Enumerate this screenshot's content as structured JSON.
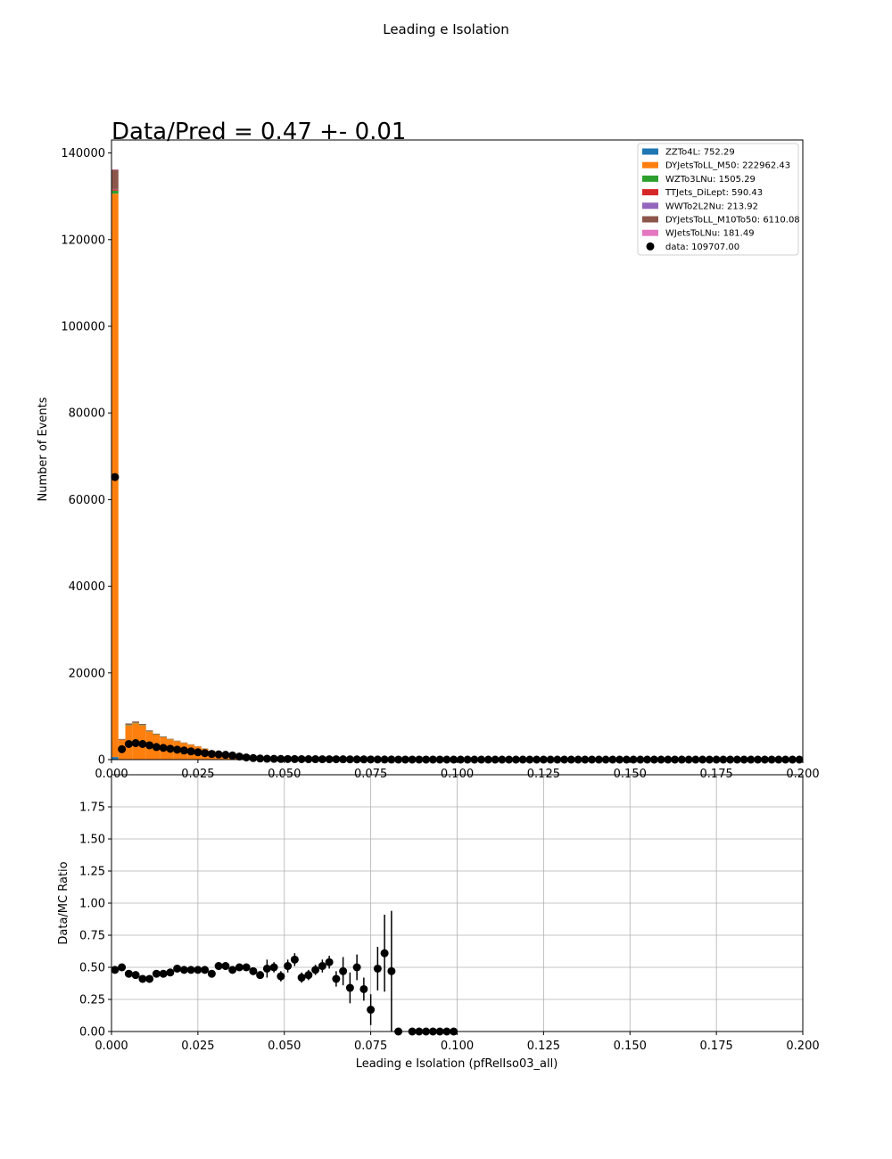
{
  "figure_title": "Leading e Isolation",
  "colors": {
    "ZZTo4L": "#1f77b4",
    "DYJetsToLL_M50": "#ff7f0e",
    "WZTo3LNu": "#2ca02c",
    "TTJets_DiLept": "#d62728",
    "WWTo2L2Nu": "#9467bd",
    "DYJetsToLL_M10To50": "#8c564b",
    "WJetsToLNu": "#e377c2",
    "data": "#000000",
    "grid": "#b0b0b0"
  },
  "chart_data": [
    {
      "type": "bar",
      "subtype": "stacked-histogram",
      "annotation": "Data/Pred = 0.47 +- 0.01",
      "ylabel": "Number of Events",
      "xlim": [
        0,
        0.2
      ],
      "ylim": [
        0,
        143000
      ],
      "xticks": [
        "0.000",
        "0.025",
        "0.050",
        "0.075",
        "0.100",
        "0.125",
        "0.150",
        "0.175",
        "0.200"
      ],
      "yticks": [
        "0",
        "20000",
        "40000",
        "60000",
        "80000",
        "100000",
        "120000",
        "140000"
      ],
      "ytick_values": [
        0,
        20000,
        40000,
        60000,
        80000,
        100000,
        120000,
        140000
      ],
      "bin_width": 0.002,
      "legend_position": "top-right",
      "legend": [
        {
          "key": "ZZTo4L",
          "label": "ZZTo4L: 752.29",
          "marker": "square"
        },
        {
          "key": "DYJetsToLL_M50",
          "label": "DYJetsToLL_M50: 222962.43",
          "marker": "square"
        },
        {
          "key": "WZTo3LNu",
          "label": "WZTo3LNu: 1505.29",
          "marker": "square"
        },
        {
          "key": "TTJets_DiLept",
          "label": "TTJets_DiLept: 590.43",
          "marker": "square"
        },
        {
          "key": "WWTo2L2Nu",
          "label": "WWTo2L2Nu: 213.92",
          "marker": "square"
        },
        {
          "key": "DYJetsToLL_M10To50",
          "label": "DYJetsToLL_M10To50: 6110.08",
          "marker": "square"
        },
        {
          "key": "WJetsToLNu",
          "label": "WJetsToLNu: 181.49",
          "marker": "square"
        },
        {
          "key": "data",
          "label": "data: 109707.00",
          "marker": "circle"
        }
      ],
      "series": [
        {
          "key": "ZZTo4L",
          "values": [
            600,
            40,
            80,
            80,
            80,
            70,
            60,
            50,
            40,
            30,
            30,
            25,
            20,
            20,
            15,
            10,
            10,
            8,
            6,
            5
          ]
        },
        {
          "key": "DYJetsToLL_M50",
          "values": [
            130000,
            4500,
            7800,
            8300,
            7800,
            6400,
            5700,
            5100,
            4600,
            4200,
            3800,
            3400,
            3000,
            2500,
            2000,
            1600,
            1200,
            900,
            700,
            600,
            500,
            450,
            400,
            380,
            360,
            340,
            320,
            300,
            290,
            280,
            270,
            260,
            250,
            240,
            230,
            220,
            210,
            200,
            190,
            180,
            175,
            170,
            165,
            160,
            155,
            150,
            145,
            140,
            135,
            130
          ]
        },
        {
          "key": "WZTo3LNu",
          "values": [
            700,
            40,
            120,
            120,
            110,
            90,
            80,
            70,
            60,
            50,
            45,
            40,
            35,
            30,
            25,
            20,
            15,
            12,
            10,
            8
          ]
        },
        {
          "key": "TTJets_DiLept",
          "values": [
            300,
            20,
            30,
            30,
            30,
            25,
            20,
            20,
            15,
            15,
            10,
            10,
            10,
            8,
            6,
            5,
            4,
            3,
            3,
            2
          ]
        },
        {
          "key": "WWTo2L2Nu",
          "values": [
            100,
            10,
            10,
            10,
            10,
            8,
            8,
            6,
            6,
            5,
            5,
            4,
            4,
            3,
            3,
            2,
            2,
            2,
            1,
            1
          ]
        },
        {
          "key": "DYJetsToLL_M10To50",
          "values": [
            4400,
            150,
            300,
            250,
            200,
            150,
            120,
            100,
            80,
            70,
            60,
            50,
            40,
            30,
            25,
            20,
            15,
            12,
            10,
            8
          ]
        },
        {
          "key": "WJetsToLNu",
          "values": [
            100,
            5,
            10,
            10,
            8,
            6,
            5,
            5,
            4,
            4,
            3,
            3,
            2,
            2,
            2,
            1,
            1,
            1,
            1,
            1
          ]
        }
      ],
      "data_points": {
        "x": [
          0.001,
          0.003,
          0.005,
          0.007,
          0.009,
          0.011,
          0.013,
          0.015,
          0.017,
          0.019,
          0.021,
          0.023,
          0.025,
          0.027,
          0.029,
          0.031,
          0.033,
          0.035,
          0.037,
          0.039,
          0.041,
          0.043,
          0.045,
          0.047,
          0.049,
          0.051,
          0.053,
          0.055,
          0.057,
          0.059,
          0.061,
          0.063,
          0.065,
          0.067,
          0.069,
          0.071,
          0.073,
          0.075,
          0.077,
          0.079,
          0.081,
          0.083,
          0.085,
          0.087,
          0.089,
          0.091,
          0.093,
          0.095,
          0.097,
          0.099,
          0.101,
          0.103,
          0.105,
          0.107,
          0.109,
          0.111,
          0.113,
          0.115,
          0.117,
          0.119,
          0.121,
          0.123,
          0.125,
          0.127,
          0.129,
          0.131,
          0.133,
          0.135,
          0.137,
          0.139,
          0.141,
          0.143,
          0.145,
          0.147,
          0.149,
          0.151,
          0.153,
          0.155,
          0.157,
          0.159,
          0.161,
          0.163,
          0.165,
          0.167,
          0.169,
          0.171,
          0.173,
          0.175,
          0.177,
          0.179,
          0.181,
          0.183,
          0.185,
          0.187,
          0.189,
          0.191,
          0.193,
          0.195,
          0.197,
          0.199
        ],
        "y": [
          65200,
          2400,
          3600,
          3800,
          3600,
          3300,
          2900,
          2700,
          2500,
          2300,
          2100,
          1900,
          1700,
          1500,
          1300,
          1200,
          1100,
          950,
          700,
          500,
          350,
          250,
          200,
          170,
          150,
          130,
          120,
          110,
          100,
          95,
          90,
          85,
          80,
          70,
          60,
          50,
          40,
          30,
          25,
          20,
          15,
          10,
          8,
          6,
          5,
          4,
          3,
          2,
          1,
          1,
          0,
          0,
          0,
          0,
          0,
          0,
          0,
          0,
          0,
          0,
          0,
          0,
          0,
          0,
          0,
          0,
          0,
          0,
          0,
          0,
          0,
          0,
          0,
          0,
          0,
          0,
          0,
          0,
          0,
          0,
          0,
          0,
          0,
          0,
          0,
          0,
          0,
          0,
          0,
          0,
          0,
          0,
          0,
          0,
          0,
          0,
          0,
          0,
          0,
          0
        ]
      }
    },
    {
      "type": "scatter",
      "subtype": "ratio-with-errorbars",
      "xlabel": "Leading e Isolation (pfRelIso03_all)",
      "ylabel": "Data/MC Ratio",
      "xlim": [
        0,
        0.2
      ],
      "ylim": [
        0,
        2.0
      ],
      "grid": true,
      "xticks": [
        "0.000",
        "0.025",
        "0.050",
        "0.075",
        "0.100",
        "0.125",
        "0.150",
        "0.175",
        "0.200"
      ],
      "yticks": [
        "0.00",
        "0.25",
        "0.50",
        "0.75",
        "1.00",
        "1.25",
        "1.50",
        "1.75"
      ],
      "ytick_values": [
        0,
        0.25,
        0.5,
        0.75,
        1.0,
        1.25,
        1.5,
        1.75
      ],
      "points": {
        "x": [
          0.001,
          0.003,
          0.005,
          0.007,
          0.009,
          0.011,
          0.013,
          0.015,
          0.017,
          0.019,
          0.021,
          0.023,
          0.025,
          0.027,
          0.029,
          0.031,
          0.033,
          0.035,
          0.037,
          0.039,
          0.041,
          0.043,
          0.045,
          0.047,
          0.049,
          0.051,
          0.053,
          0.055,
          0.057,
          0.059,
          0.061,
          0.063,
          0.065,
          0.067,
          0.069,
          0.071,
          0.073,
          0.075,
          0.077,
          0.079,
          0.081,
          0.083,
          0.087,
          0.089,
          0.091,
          0.093,
          0.095,
          0.097,
          0.099
        ],
        "y": [
          0.48,
          0.5,
          0.45,
          0.44,
          0.41,
          0.41,
          0.45,
          0.45,
          0.46,
          0.49,
          0.48,
          0.48,
          0.48,
          0.48,
          0.45,
          0.51,
          0.51,
          0.48,
          0.5,
          0.5,
          0.47,
          0.44,
          0.49,
          0.5,
          0.43,
          0.51,
          0.56,
          0.42,
          0.44,
          0.48,
          0.51,
          0.54,
          0.41,
          0.47,
          0.34,
          0.5,
          0.33,
          0.17,
          0.49,
          0.61,
          0.47,
          0.0,
          0.0,
          0.0,
          0.0,
          0.0,
          0.0,
          0.0,
          0.0
        ],
        "err": [
          0.0,
          0.0,
          0.0,
          0.0,
          0.0,
          0.0,
          0.0,
          0.0,
          0.0,
          0.0,
          0.0,
          0.0,
          0.0,
          0.0,
          0.0,
          0.0,
          0.0,
          0.0,
          0.0,
          0.0,
          0.0,
          0.03,
          0.07,
          0.04,
          0.04,
          0.05,
          0.05,
          0.04,
          0.04,
          0.04,
          0.05,
          0.05,
          0.06,
          0.11,
          0.12,
          0.1,
          0.09,
          0.12,
          0.17,
          0.3,
          0.47,
          0.0,
          0.0,
          0.0,
          0.0,
          0.0,
          0.0,
          0.0,
          0.0
        ]
      }
    }
  ]
}
